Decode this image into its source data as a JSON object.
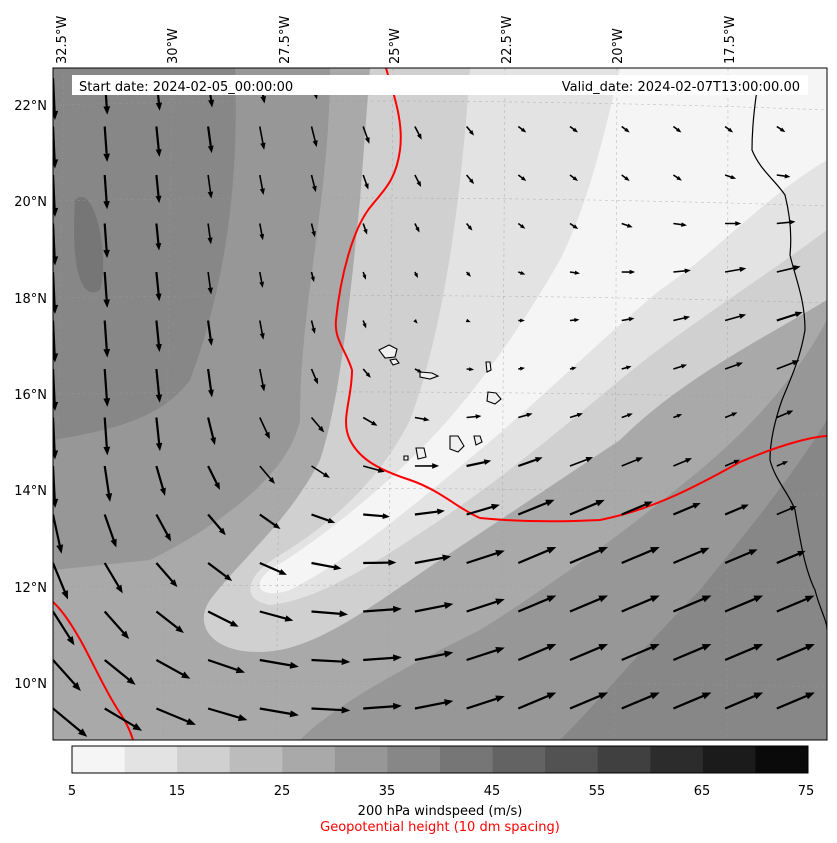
{
  "header": {
    "start_date": "Start date: 2024-02-05_00:00:00",
    "valid_date": "Valid_date: 2024-02-07T13:00:00.00"
  },
  "map": {
    "projection": "conic",
    "lon_labels": [
      "32.5°W",
      "30°W",
      "27.5°W",
      "25°W",
      "22.5°W",
      "20°W",
      "17.5°W"
    ],
    "lat_labels": [
      "22°N",
      "20°N",
      "18°N",
      "16°N",
      "14°N",
      "12°N",
      "10°N"
    ],
    "field": "200 hPa windspeed",
    "contour_field": "Geopotential height",
    "contour_color": "#ff0000",
    "vector_color": "#000000",
    "coastline_color": "#000000",
    "gridlines": true
  },
  "colorbar": {
    "ticks": [
      "5",
      "15",
      "25",
      "35",
      "45",
      "55",
      "65",
      "75"
    ],
    "levels": [
      5,
      10,
      15,
      20,
      25,
      30,
      35,
      40,
      45,
      50,
      55,
      60,
      65,
      70,
      75
    ],
    "colors": [
      "#f5f5f5",
      "#e3e3e3",
      "#d0d0d0",
      "#bcbcbc",
      "#a9a9a9",
      "#979797",
      "#878787",
      "#767676",
      "#636363",
      "#525252",
      "#404040",
      "#2c2c2c",
      "#1b1b1b",
      "#0a0a0a"
    ],
    "label": "200 hPa windspeed (m/s)",
    "label2": "Geopotential height (10 dm spacing)"
  }
}
